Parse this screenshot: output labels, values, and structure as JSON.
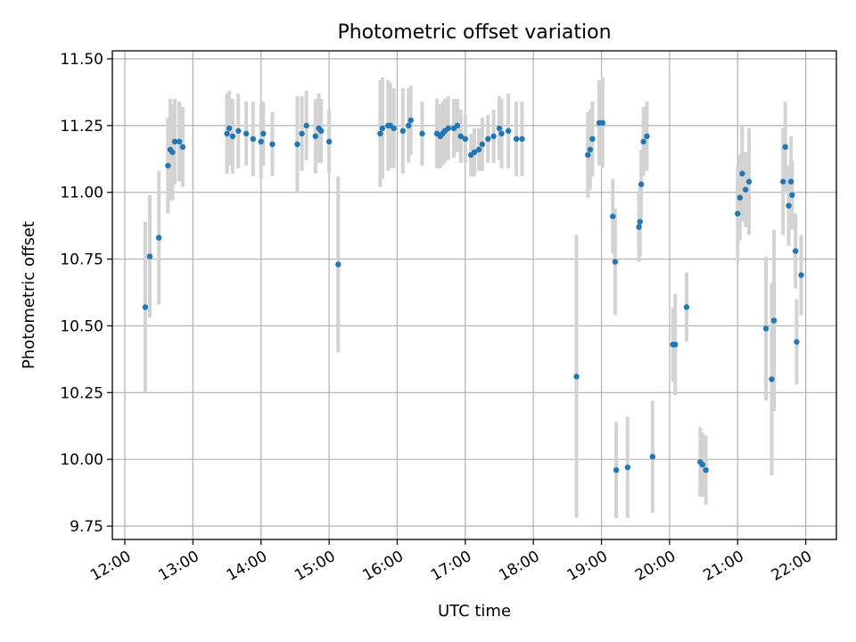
{
  "chart_data": {
    "type": "scatter",
    "title": "Photometric offset variation",
    "xlabel": "UTC time",
    "ylabel": "Photometric offset",
    "grid": true,
    "legend": "none",
    "xlim": [
      "11:49",
      "22:27"
    ],
    "ylim": [
      9.7,
      11.53
    ],
    "xticks": [
      "12:00",
      "13:00",
      "14:00",
      "15:00",
      "16:00",
      "17:00",
      "18:00",
      "19:00",
      "20:00",
      "21:00",
      "22:00"
    ],
    "yticks": [
      9.75,
      10.0,
      10.25,
      10.5,
      10.75,
      11.0,
      11.25,
      11.5
    ],
    "colors": {
      "points": "#1f77b4",
      "errorbars": "#d3d3d3"
    },
    "points": [
      {
        "t": "12:18",
        "y": 10.57,
        "err": 0.32
      },
      {
        "t": "12:22",
        "y": 10.76,
        "err": 0.23
      },
      {
        "t": "12:30",
        "y": 10.83,
        "err": 0.25
      },
      {
        "t": "12:38",
        "y": 11.1,
        "err": 0.18
      },
      {
        "t": "12:40",
        "y": 11.16,
        "err": 0.19
      },
      {
        "t": "12:42",
        "y": 11.15,
        "err": 0.18
      },
      {
        "t": "12:44",
        "y": 11.19,
        "err": 0.16
      },
      {
        "t": "12:48",
        "y": 11.19,
        "err": 0.15
      },
      {
        "t": "12:51",
        "y": 11.17,
        "err": 0.15
      },
      {
        "t": "13:30",
        "y": 11.22,
        "err": 0.15
      },
      {
        "t": "13:32",
        "y": 11.24,
        "err": 0.14
      },
      {
        "t": "13:35",
        "y": 11.21,
        "err": 0.14
      },
      {
        "t": "13:40",
        "y": 11.23,
        "err": 0.14
      },
      {
        "t": "13:47",
        "y": 11.22,
        "err": 0.12
      },
      {
        "t": "13:53",
        "y": 11.2,
        "err": 0.14
      },
      {
        "t": "14:00",
        "y": 11.19,
        "err": 0.14
      },
      {
        "t": "14:02",
        "y": 11.22,
        "err": 0.12
      },
      {
        "t": "14:10",
        "y": 11.18,
        "err": 0.12
      },
      {
        "t": "14:32",
        "y": 11.18,
        "err": 0.18
      },
      {
        "t": "14:36",
        "y": 11.22,
        "err": 0.14
      },
      {
        "t": "14:40",
        "y": 11.25,
        "err": 0.13
      },
      {
        "t": "14:48",
        "y": 11.21,
        "err": 0.14
      },
      {
        "t": "14:51",
        "y": 11.24,
        "err": 0.13
      },
      {
        "t": "14:53",
        "y": 11.23,
        "err": 0.12
      },
      {
        "t": "15:00",
        "y": 11.19,
        "err": 0.12
      },
      {
        "t": "15:08",
        "y": 10.73,
        "err": 0.33
      },
      {
        "t": "15:45",
        "y": 11.22,
        "err": 0.2
      },
      {
        "t": "15:47",
        "y": 11.24,
        "err": 0.19
      },
      {
        "t": "15:52",
        "y": 11.25,
        "err": 0.17
      },
      {
        "t": "15:54",
        "y": 11.25,
        "err": 0.16
      },
      {
        "t": "15:57",
        "y": 11.24,
        "err": 0.15
      },
      {
        "t": "16:05",
        "y": 11.23,
        "err": 0.16
      },
      {
        "t": "16:10",
        "y": 11.25,
        "err": 0.14
      },
      {
        "t": "16:12",
        "y": 11.27,
        "err": 0.13
      },
      {
        "t": "16:22",
        "y": 11.22,
        "err": 0.12
      },
      {
        "t": "16:35",
        "y": 11.22,
        "err": 0.13
      },
      {
        "t": "16:38",
        "y": 11.21,
        "err": 0.12
      },
      {
        "t": "16:40",
        "y": 11.22,
        "err": 0.12
      },
      {
        "t": "16:42",
        "y": 11.23,
        "err": 0.12
      },
      {
        "t": "16:45",
        "y": 11.24,
        "err": 0.12
      },
      {
        "t": "16:50",
        "y": 11.24,
        "err": 0.11
      },
      {
        "t": "16:53",
        "y": 11.25,
        "err": 0.1
      },
      {
        "t": "16:56",
        "y": 11.21,
        "err": 0.1
      },
      {
        "t": "17:00",
        "y": 11.2,
        "err": 0.09
      },
      {
        "t": "17:05",
        "y": 11.14,
        "err": 0.08
      },
      {
        "t": "17:08",
        "y": 11.15,
        "err": 0.09
      },
      {
        "t": "17:12",
        "y": 11.16,
        "err": 0.08
      },
      {
        "t": "17:15",
        "y": 11.18,
        "err": 0.1
      },
      {
        "t": "17:20",
        "y": 11.2,
        "err": 0.09
      },
      {
        "t": "17:25",
        "y": 11.21,
        "err": 0.1
      },
      {
        "t": "17:30",
        "y": 11.24,
        "err": 0.12
      },
      {
        "t": "17:32",
        "y": 11.22,
        "err": 0.13
      },
      {
        "t": "17:38",
        "y": 11.23,
        "err": 0.14
      },
      {
        "t": "17:45",
        "y": 11.2,
        "err": 0.14
      },
      {
        "t": "17:50",
        "y": 11.2,
        "err": 0.14
      },
      {
        "t": "18:38",
        "y": 10.31,
        "err": 0.53
      },
      {
        "t": "18:48",
        "y": 11.14,
        "err": 0.16
      },
      {
        "t": "18:50",
        "y": 11.16,
        "err": 0.15
      },
      {
        "t": "18:52",
        "y": 11.2,
        "err": 0.14
      },
      {
        "t": "18:58",
        "y": 11.26,
        "err": 0.16
      },
      {
        "t": "19:01",
        "y": 11.26,
        "err": 0.17
      },
      {
        "t": "19:10",
        "y": 10.91,
        "err": 0.14
      },
      {
        "t": "19:12",
        "y": 10.74,
        "err": 0.2
      },
      {
        "t": "19:13",
        "y": 9.96,
        "err": 0.18
      },
      {
        "t": "19:23",
        "y": 9.97,
        "err": 0.19
      },
      {
        "t": "19:33",
        "y": 10.87,
        "err": 0.13
      },
      {
        "t": "19:34",
        "y": 10.89,
        "err": 0.13
      },
      {
        "t": "19:35",
        "y": 11.03,
        "err": 0.13
      },
      {
        "t": "19:37",
        "y": 11.19,
        "err": 0.13
      },
      {
        "t": "19:40",
        "y": 11.21,
        "err": 0.13
      },
      {
        "t": "19:45",
        "y": 10.01,
        "err": 0.21
      },
      {
        "t": "20:03",
        "y": 10.43,
        "err": 0.14
      },
      {
        "t": "20:05",
        "y": 10.43,
        "err": 0.19
      },
      {
        "t": "20:15",
        "y": 10.57,
        "err": 0.13
      },
      {
        "t": "20:27",
        "y": 9.99,
        "err": 0.13
      },
      {
        "t": "20:29",
        "y": 9.98,
        "err": 0.12
      },
      {
        "t": "20:32",
        "y": 9.96,
        "err": 0.13
      },
      {
        "t": "21:00",
        "y": 10.92,
        "err": 0.18
      },
      {
        "t": "21:02",
        "y": 10.98,
        "err": 0.16
      },
      {
        "t": "21:04",
        "y": 11.07,
        "err": 0.18
      },
      {
        "t": "21:07",
        "y": 11.01,
        "err": 0.14
      },
      {
        "t": "21:10",
        "y": 11.04,
        "err": 0.2
      },
      {
        "t": "21:25",
        "y": 10.49,
        "err": 0.27
      },
      {
        "t": "21:30",
        "y": 10.3,
        "err": 0.36
      },
      {
        "t": "21:32",
        "y": 10.52,
        "err": 0.34
      },
      {
        "t": "21:40",
        "y": 11.04,
        "err": 0.2
      },
      {
        "t": "21:42",
        "y": 11.17,
        "err": 0.17
      },
      {
        "t": "21:45",
        "y": 10.95,
        "err": 0.15
      },
      {
        "t": "21:47",
        "y": 11.04,
        "err": 0.17
      },
      {
        "t": "21:48",
        "y": 10.99,
        "err": 0.13
      },
      {
        "t": "21:51",
        "y": 10.78,
        "err": 0.14
      },
      {
        "t": "21:52",
        "y": 10.44,
        "err": 0.16
      },
      {
        "t": "21:56",
        "y": 10.69,
        "err": 0.15
      }
    ]
  }
}
